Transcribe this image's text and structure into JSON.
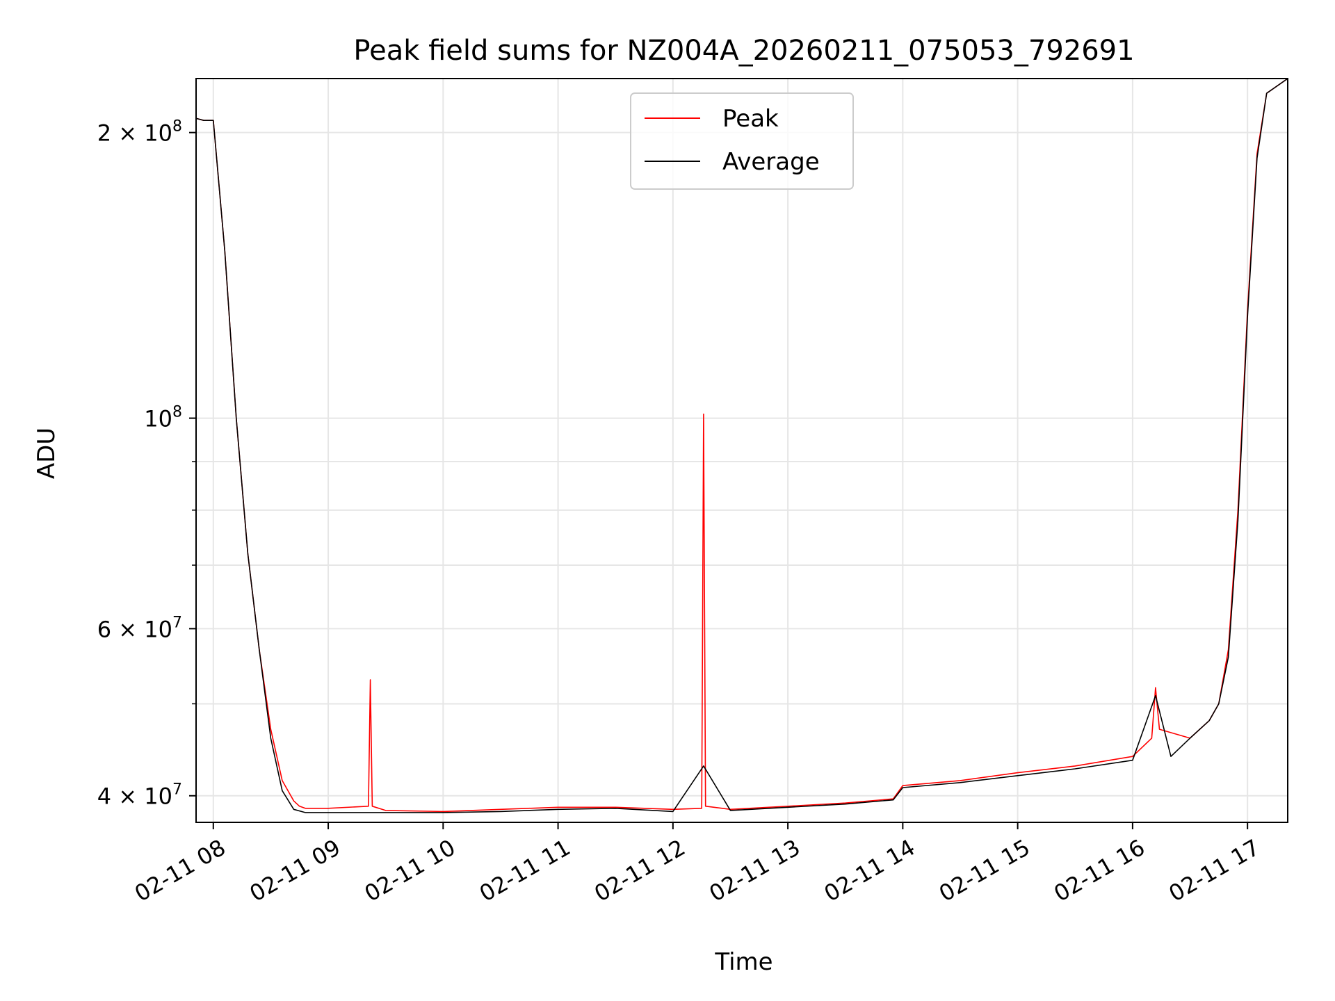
{
  "chart_data": {
    "type": "line",
    "title": "Peak field sums for NZ004A_20260211_075053_792691",
    "xlabel": "Time",
    "ylabel": "ADU",
    "yscale": "log",
    "xlim": [
      "2026-02-11 07:51",
      "2026-02-11 17:21"
    ],
    "ylim": [
      37500000,
      228000000
    ],
    "x_ticks": [
      {
        "value": "2026-02-11 08:00",
        "label": "02-11 08"
      },
      {
        "value": "2026-02-11 09:00",
        "label": "02-11 09"
      },
      {
        "value": "2026-02-11 10:00",
        "label": "02-11 10"
      },
      {
        "value": "2026-02-11 11:00",
        "label": "02-11 11"
      },
      {
        "value": "2026-02-11 12:00",
        "label": "02-11 12"
      },
      {
        "value": "2026-02-11 13:00",
        "label": "02-11 13"
      },
      {
        "value": "2026-02-11 14:00",
        "label": "02-11 14"
      },
      {
        "value": "2026-02-11 15:00",
        "label": "02-11 15"
      },
      {
        "value": "2026-02-11 16:00",
        "label": "02-11 16"
      },
      {
        "value": "2026-02-11 17:00",
        "label": "02-11 17"
      }
    ],
    "y_ticks": [
      {
        "value": 40000000,
        "base": "4 × 10",
        "exp": "7"
      },
      {
        "value": 60000000,
        "base": "6 × 10",
        "exp": "7"
      },
      {
        "value": 100000000,
        "base": "10",
        "exp": "8"
      },
      {
        "value": 200000000,
        "base": "2 × 10",
        "exp": "8"
      }
    ],
    "y_minor_ticks": [
      50000000,
      70000000,
      80000000,
      90000000
    ],
    "grid": true,
    "legend_position": "upper center",
    "series": [
      {
        "name": "Peak",
        "color": "#ff0000",
        "x": [
          "2026-02-11 07:51",
          "2026-02-11 07:55",
          "2026-02-11 08:00",
          "2026-02-11 08:06",
          "2026-02-11 08:12",
          "2026-02-11 08:18",
          "2026-02-11 08:24",
          "2026-02-11 08:30",
          "2026-02-11 08:36",
          "2026-02-11 08:42",
          "2026-02-11 08:45",
          "2026-02-11 08:48",
          "2026-02-11 09:00",
          "2026-02-11 09:21",
          "2026-02-11 09:22",
          "2026-02-11 09:23",
          "2026-02-11 09:30",
          "2026-02-11 10:00",
          "2026-02-11 10:30",
          "2026-02-11 11:00",
          "2026-02-11 11:30",
          "2026-02-11 12:00",
          "2026-02-11 12:15",
          "2026-02-11 12:16",
          "2026-02-11 12:17",
          "2026-02-11 12:30",
          "2026-02-11 13:00",
          "2026-02-11 13:30",
          "2026-02-11 13:55",
          "2026-02-11 14:00",
          "2026-02-11 14:30",
          "2026-02-11 15:00",
          "2026-02-11 15:30",
          "2026-02-11 16:00",
          "2026-02-11 16:10",
          "2026-02-11 16:12",
          "2026-02-11 16:14",
          "2026-02-11 16:30",
          "2026-02-11 16:40",
          "2026-02-11 16:45",
          "2026-02-11 16:50",
          "2026-02-11 16:55",
          "2026-02-11 17:00",
          "2026-02-11 17:05",
          "2026-02-11 17:10",
          "2026-02-11 17:21"
        ],
        "y": [
          207000000,
          206000000,
          206000000,
          150000000,
          100000000,
          72000000,
          57000000,
          47000000,
          41500000,
          39500000,
          39000000,
          38800000,
          38800000,
          39000000,
          53000000,
          39000000,
          38600000,
          38500000,
          38700000,
          38900000,
          38900000,
          38700000,
          38800000,
          101000000,
          39000000,
          38700000,
          39000000,
          39300000,
          39700000,
          41000000,
          41500000,
          42300000,
          43000000,
          44000000,
          46000000,
          52000000,
          47000000,
          46000000,
          48000000,
          50000000,
          57000000,
          80000000,
          130000000,
          190000000,
          220000000,
          228000000
        ]
      },
      {
        "name": "Average",
        "color": "#000000",
        "x": [
          "2026-02-11 07:51",
          "2026-02-11 07:55",
          "2026-02-11 08:00",
          "2026-02-11 08:06",
          "2026-02-11 08:12",
          "2026-02-11 08:18",
          "2026-02-11 08:24",
          "2026-02-11 08:30",
          "2026-02-11 08:36",
          "2026-02-11 08:42",
          "2026-02-11 08:48",
          "2026-02-11 09:00",
          "2026-02-11 09:30",
          "2026-02-11 10:00",
          "2026-02-11 10:30",
          "2026-02-11 11:00",
          "2026-02-11 11:30",
          "2026-02-11 12:00",
          "2026-02-11 12:16",
          "2026-02-11 12:30",
          "2026-02-11 13:00",
          "2026-02-11 13:30",
          "2026-02-11 13:55",
          "2026-02-11 14:00",
          "2026-02-11 14:30",
          "2026-02-11 15:00",
          "2026-02-11 15:30",
          "2026-02-11 16:00",
          "2026-02-11 16:12",
          "2026-02-11 16:20",
          "2026-02-11 16:30",
          "2026-02-11 16:40",
          "2026-02-11 16:45",
          "2026-02-11 16:50",
          "2026-02-11 16:55",
          "2026-02-11 17:00",
          "2026-02-11 17:05",
          "2026-02-11 17:10",
          "2026-02-11 17:21"
        ],
        "y": [
          207000000,
          206000000,
          206000000,
          150000000,
          100000000,
          72000000,
          57000000,
          46000000,
          40500000,
          38700000,
          38400000,
          38400000,
          38400000,
          38400000,
          38500000,
          38700000,
          38800000,
          38500000,
          43000000,
          38600000,
          38900000,
          39200000,
          39600000,
          40800000,
          41300000,
          42000000,
          42700000,
          43600000,
          51000000,
          44000000,
          46000000,
          48000000,
          50000000,
          56000000,
          78000000,
          128000000,
          188000000,
          220000000,
          228000000
        ]
      }
    ]
  }
}
